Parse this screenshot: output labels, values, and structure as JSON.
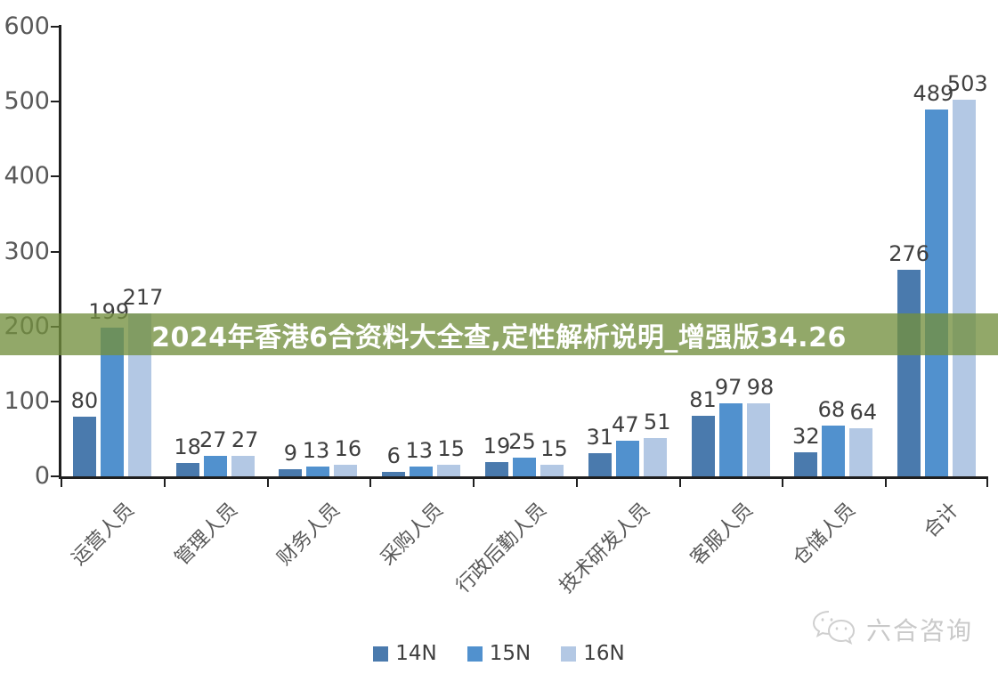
{
  "banner": {
    "text": "2024年香港6合资料大全查,定性解析说明_增强版34.26",
    "background": "rgba(115,144,63,0.78)",
    "text_color": "#ffffff"
  },
  "watermark": {
    "brand": "六合咨询",
    "icon": "wechat-icon",
    "color": "#c9c9c9"
  },
  "chart_data": {
    "type": "bar",
    "title": "",
    "xlabel": "",
    "ylabel": "",
    "categories": [
      "运营人员",
      "管理人员",
      "财务人员",
      "采购人员",
      "行政后勤人员",
      "技术研发人员",
      "客服人员",
      "仓储人员",
      "合计"
    ],
    "series": [
      {
        "name": "14N",
        "color": "#4A7AAD",
        "values": [
          80,
          18,
          9,
          6,
          19,
          31,
          81,
          32,
          276
        ]
      },
      {
        "name": "15N",
        "color": "#5191CE",
        "values": [
          199,
          27,
          13,
          13,
          25,
          47,
          97,
          68,
          489
        ]
      },
      {
        "name": "16N",
        "color": "#B3C8E4",
        "values": [
          217,
          27,
          16,
          15,
          15,
          51,
          98,
          64,
          503
        ]
      }
    ],
    "ylim": [
      0,
      600
    ],
    "yticks": [
      0,
      100,
      200,
      300,
      400,
      500,
      600
    ],
    "grid": false,
    "legend_position": "bottom",
    "value_labels": true,
    "axis_color": "#1f1f1f",
    "tick_label_color": "#595959",
    "value_label_color": "#3f3f3f"
  }
}
